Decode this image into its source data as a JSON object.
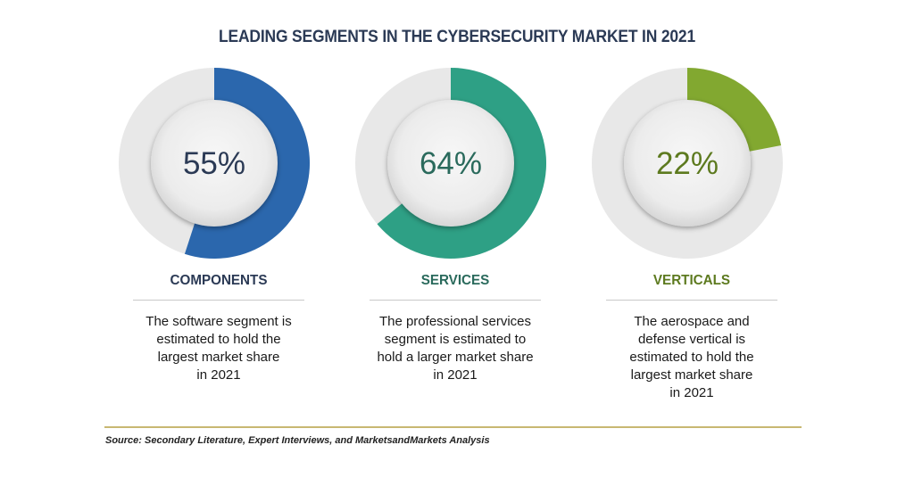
{
  "title": "LEADING SEGMENTS IN THE CYBERSECURITY MARKET IN 2021",
  "source": "Source: Secondary Literature, Expert Interviews, and MarketsandMarkets Analysis",
  "colors": {
    "track": "#e8e8e8",
    "inner": "#ececec",
    "rule": "#c8b872"
  },
  "chart_data": [
    {
      "type": "pie",
      "variant": "donut",
      "value": 55,
      "label": "55%",
      "color": "#2b67ad",
      "title": "COMPONENTS",
      "title_color": "#2b3a55",
      "description": [
        "The software segment is",
        "estimated to hold the",
        "largest market share",
        "in 2021"
      ]
    },
    {
      "type": "pie",
      "variant": "donut",
      "value": 64,
      "label": "64%",
      "color": "#2ea085",
      "title": "SERVICES",
      "title_color": "#2a6a5c",
      "description": [
        "The professional services",
        "segment is estimated to",
        "hold a larger market share",
        "in 2021"
      ]
    },
    {
      "type": "pie",
      "variant": "donut",
      "value": 22,
      "label": "22%",
      "color": "#82a830",
      "title": "VERTICALS",
      "title_color": "#5d7a1f",
      "description": [
        "The aerospace and",
        "defense vertical is",
        "estimated to hold the",
        "largest market share",
        "in 2021"
      ]
    }
  ]
}
